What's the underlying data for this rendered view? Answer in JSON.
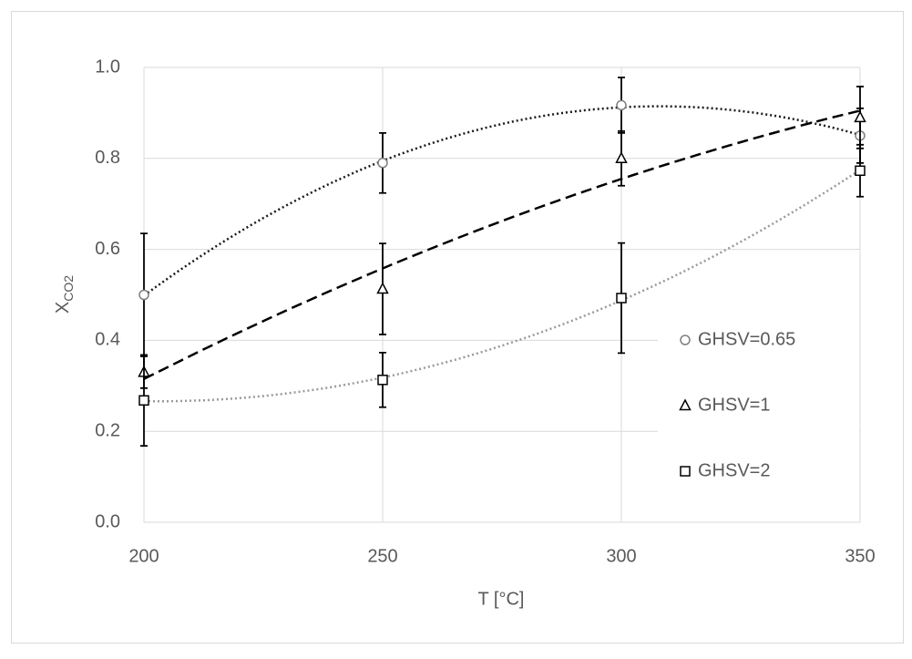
{
  "chart_data": {
    "type": "scatter",
    "x_label": "T [°C]",
    "y_label": "X",
    "y_label_subscript": "CO2",
    "xlim": [
      200,
      350
    ],
    "xticks": [
      200,
      250,
      300,
      350
    ],
    "ylim": [
      0,
      1
    ],
    "yticks": [
      {
        "value": 0,
        "label": "0.0"
      },
      0.2,
      0.4,
      0.6,
      0.8,
      {
        "value": 1,
        "label": "1.0"
      }
    ],
    "grid": true,
    "legend": "right",
    "series": [
      {
        "name": "GHSV=0.65",
        "marker": "circle",
        "color": "#7f7f7f",
        "trendline": "poly2",
        "trendline_color": "#1a1a1a",
        "trendline_dash": "2 3",
        "x": [
          200,
          250,
          300,
          350
        ],
        "values": [
          0.5,
          0.79,
          0.917,
          0.85
        ],
        "errors": [
          0.135,
          0.066,
          0.061,
          0.06
        ]
      },
      {
        "name": "GHSV=1",
        "marker": "triangle",
        "color": "#000000",
        "trendline": "poly2",
        "trendline_color": "#000000",
        "trendline_dash": "12 6",
        "x": [
          200,
          250,
          300,
          350
        ],
        "values": [
          0.33,
          0.513,
          0.8,
          0.89
        ],
        "errors": [
          0.035,
          0.1,
          0.06,
          0.068
        ]
      },
      {
        "name": "GHSV=2",
        "marker": "square",
        "color": "#000000",
        "trendline": "poly2",
        "trendline_color": "#9a9a9a",
        "trendline_dash": "2 3",
        "x": [
          200,
          250,
          300,
          350
        ],
        "values": [
          0.268,
          0.313,
          0.493,
          0.773
        ],
        "errors": [
          0.1,
          0.06,
          0.121,
          0.057
        ]
      }
    ]
  }
}
